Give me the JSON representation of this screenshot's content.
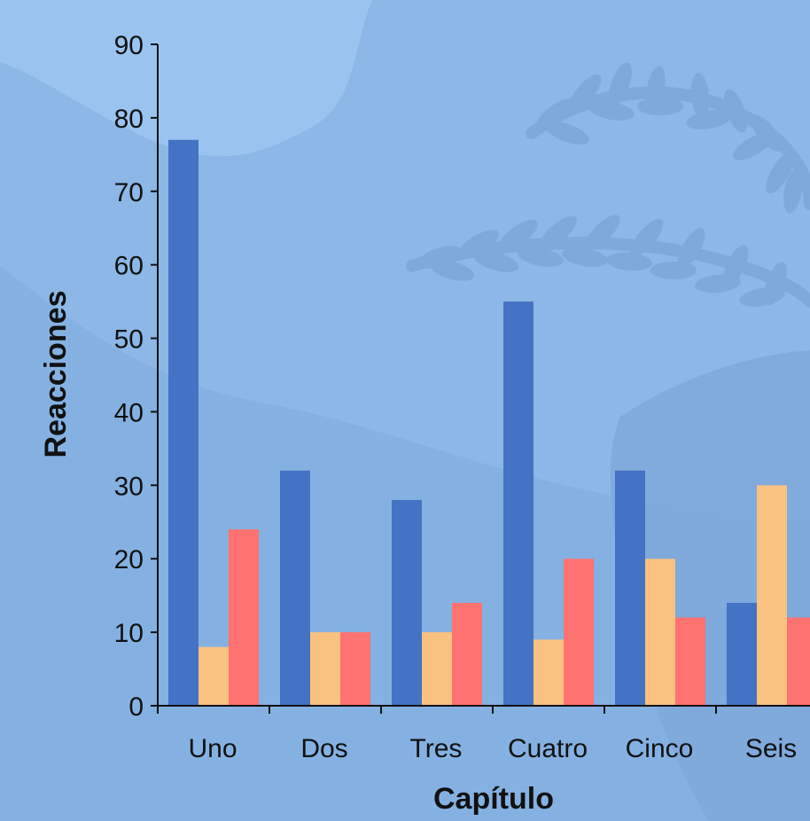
{
  "chart_data": {
    "type": "bar",
    "title": "",
    "xlabel": "Capítulo",
    "ylabel": "Reacciones",
    "categories": [
      "Uno",
      "Dos",
      "Tres",
      "Cuatro",
      "Cinco",
      "Seis"
    ],
    "series": [
      {
        "values": [
          77,
          32,
          28,
          55,
          32,
          14
        ],
        "color": "#4472c4"
      },
      {
        "values": [
          8,
          10,
          10,
          9,
          20,
          30
        ],
        "color": "#f9c280"
      },
      {
        "values": [
          24,
          10,
          14,
          20,
          12,
          12
        ],
        "color": "#ff7272"
      }
    ],
    "ylim": [
      0,
      90
    ],
    "yticks": [
      0,
      10,
      20,
      30,
      40,
      50,
      60,
      70,
      80,
      90
    ],
    "grid": false,
    "legend": "none"
  },
  "background": {
    "base_color": "#8cb7e6",
    "decoration": "laurel-branch"
  }
}
